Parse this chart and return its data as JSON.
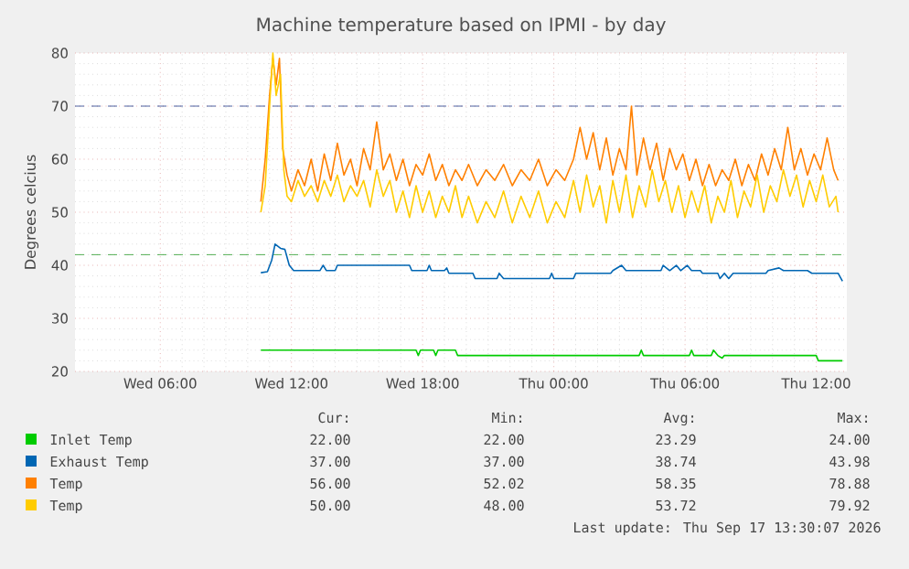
{
  "chart_data": {
    "type": "line",
    "title": "Machine temperature based on IPMI - by day",
    "ylabel": "Degrees celcius",
    "xlim": [
      "2026-09-16T02:06",
      "2026-09-17T13:24"
    ],
    "ylim": [
      20,
      80
    ],
    "xticks": [
      {
        "value": "2026-09-16T06:00",
        "label": "Wed 06:00"
      },
      {
        "value": "2026-09-16T12:00",
        "label": "Wed 12:00"
      },
      {
        "value": "2026-09-16T18:00",
        "label": "Wed 18:00"
      },
      {
        "value": "2026-09-17T00:00",
        "label": "Thu 00:00"
      },
      {
        "value": "2026-09-17T06:00",
        "label": "Thu 06:00"
      },
      {
        "value": "2026-09-17T12:00",
        "label": "Thu 12:00"
      }
    ],
    "yticks": [
      20,
      30,
      40,
      50,
      60,
      70,
      80
    ],
    "grid": true,
    "legend": "bottom",
    "marker": "none",
    "line_style": "solid",
    "ref_lines": [
      {
        "axis": "y",
        "value": 70,
        "color": "#1f3a8a",
        "line_style": "dashed"
      },
      {
        "axis": "y",
        "value": 42,
        "color": "#2a9a2a",
        "line_style": "dashed"
      }
    ],
    "series": [
      {
        "name": "Inlet Temp",
        "color": "#00cc00",
        "x": [
          "2026-09-16T10:36",
          "2026-09-16T17:42",
          "2026-09-16T17:48",
          "2026-09-16T17:54",
          "2026-09-16T18:30",
          "2026-09-16T18:36",
          "2026-09-16T18:42",
          "2026-09-16T19:30",
          "2026-09-16T19:36",
          "2026-09-17T03:54",
          "2026-09-17T04:00",
          "2026-09-17T04:06",
          "2026-09-17T06:12",
          "2026-09-17T06:18",
          "2026-09-17T06:24",
          "2026-09-17T07:12",
          "2026-09-17T07:18",
          "2026-09-17T07:30",
          "2026-09-17T07:42",
          "2026-09-17T07:48",
          "2026-09-17T12:00",
          "2026-09-17T12:06",
          "2026-09-17T13:12"
        ],
        "values": [
          24,
          24,
          23,
          24,
          24,
          23,
          24,
          24,
          23,
          23,
          24,
          23,
          23,
          24,
          23,
          23,
          24,
          23,
          22.5,
          23,
          23,
          22,
          22
        ]
      },
      {
        "name": "Exhaust Temp",
        "color": "#0066b3",
        "x": [
          "2026-09-16T10:36",
          "2026-09-16T10:54",
          "2026-09-16T11:06",
          "2026-09-16T11:15",
          "2026-09-16T11:30",
          "2026-09-16T11:42",
          "2026-09-16T11:54",
          "2026-09-16T12:06",
          "2026-09-16T13:18",
          "2026-09-16T13:27",
          "2026-09-16T13:36",
          "2026-09-16T14:00",
          "2026-09-16T14:06",
          "2026-09-16T17:24",
          "2026-09-16T17:30",
          "2026-09-16T18:12",
          "2026-09-16T18:18",
          "2026-09-16T18:24",
          "2026-09-16T19:00",
          "2026-09-16T19:06",
          "2026-09-16T19:12",
          "2026-09-16T20:18",
          "2026-09-16T20:24",
          "2026-09-16T21:24",
          "2026-09-16T21:30",
          "2026-09-16T21:42",
          "2026-09-16T23:48",
          "2026-09-16T23:54",
          "2026-09-17T00:00",
          "2026-09-17T00:54",
          "2026-09-17T01:00",
          "2026-09-17T02:36",
          "2026-09-17T02:42",
          "2026-09-17T03:06",
          "2026-09-17T03:18",
          "2026-09-17T04:54",
          "2026-09-17T05:00",
          "2026-09-17T05:18",
          "2026-09-17T05:36",
          "2026-09-17T05:48",
          "2026-09-17T06:06",
          "2026-09-17T06:18",
          "2026-09-17T06:42",
          "2026-09-17T06:48",
          "2026-09-17T07:30",
          "2026-09-17T07:36",
          "2026-09-17T07:48",
          "2026-09-17T08:00",
          "2026-09-17T08:12",
          "2026-09-17T09:42",
          "2026-09-17T09:48",
          "2026-09-17T10:18",
          "2026-09-17T10:30",
          "2026-09-17T11:36",
          "2026-09-17T11:48",
          "2026-09-17T13:00",
          "2026-09-17T13:12"
        ],
        "values": [
          38.6,
          38.8,
          41,
          44,
          43.2,
          43,
          40,
          39,
          39,
          40,
          39,
          39,
          40,
          40,
          39,
          39,
          40,
          39,
          39,
          39.5,
          38.5,
          38.5,
          37.5,
          37.5,
          38.5,
          37.5,
          37.5,
          38.5,
          37.5,
          37.5,
          38.5,
          38.5,
          39,
          40,
          39,
          39,
          40,
          39,
          40,
          39,
          40,
          39,
          39,
          38.5,
          38.5,
          37.5,
          38.5,
          37.5,
          38.5,
          38.5,
          39,
          39.5,
          39,
          39,
          38.5,
          38.5,
          37
        ]
      },
      {
        "name": "Temp",
        "color": "#ff8000",
        "x": [
          "2026-09-16T10:36",
          "2026-09-16T10:48",
          "2026-09-16T11:00",
          "2026-09-16T11:09",
          "2026-09-16T11:18",
          "2026-09-16T11:27",
          "2026-09-16T11:36",
          "2026-09-16T11:48",
          "2026-09-16T12:00",
          "2026-09-16T12:18",
          "2026-09-16T12:36",
          "2026-09-16T12:54",
          "2026-09-16T13:12",
          "2026-09-16T13:30",
          "2026-09-16T13:48",
          "2026-09-16T14:06",
          "2026-09-16T14:24",
          "2026-09-16T14:42",
          "2026-09-16T15:00",
          "2026-09-16T15:18",
          "2026-09-16T15:36",
          "2026-09-16T15:54",
          "2026-09-16T16:12",
          "2026-09-16T16:30",
          "2026-09-16T16:48",
          "2026-09-16T17:06",
          "2026-09-16T17:24",
          "2026-09-16T17:42",
          "2026-09-16T18:00",
          "2026-09-16T18:18",
          "2026-09-16T18:36",
          "2026-09-16T18:54",
          "2026-09-16T19:12",
          "2026-09-16T19:30",
          "2026-09-16T19:48",
          "2026-09-16T20:06",
          "2026-09-16T20:30",
          "2026-09-16T20:54",
          "2026-09-16T21:18",
          "2026-09-16T21:42",
          "2026-09-16T22:06",
          "2026-09-16T22:30",
          "2026-09-16T22:54",
          "2026-09-16T23:18",
          "2026-09-16T23:42",
          "2026-09-17T00:06",
          "2026-09-17T00:30",
          "2026-09-17T00:54",
          "2026-09-17T01:12",
          "2026-09-17T01:30",
          "2026-09-17T01:48",
          "2026-09-17T02:06",
          "2026-09-17T02:24",
          "2026-09-17T02:42",
          "2026-09-17T03:00",
          "2026-09-17T03:18",
          "2026-09-17T03:33",
          "2026-09-17T03:48",
          "2026-09-17T04:06",
          "2026-09-17T04:24",
          "2026-09-17T04:42",
          "2026-09-17T05:00",
          "2026-09-17T05:18",
          "2026-09-17T05:36",
          "2026-09-17T05:54",
          "2026-09-17T06:12",
          "2026-09-17T06:30",
          "2026-09-17T06:48",
          "2026-09-17T07:06",
          "2026-09-17T07:24",
          "2026-09-17T07:42",
          "2026-09-17T08:00",
          "2026-09-17T08:18",
          "2026-09-17T08:36",
          "2026-09-17T08:54",
          "2026-09-17T09:12",
          "2026-09-17T09:30",
          "2026-09-17T09:48",
          "2026-09-17T10:06",
          "2026-09-17T10:24",
          "2026-09-17T10:42",
          "2026-09-17T11:00",
          "2026-09-17T11:18",
          "2026-09-17T11:36",
          "2026-09-17T11:54",
          "2026-09-17T12:12",
          "2026-09-17T12:30",
          "2026-09-17T12:48",
          "2026-09-17T13:00"
        ],
        "values": [
          52,
          60,
          72,
          79,
          74,
          79,
          62,
          57,
          54,
          58,
          55,
          60,
          54,
          61,
          56,
          63,
          57,
          60,
          55,
          62,
          58,
          67,
          58,
          61,
          56,
          60,
          55,
          59,
          57,
          61,
          56,
          59,
          55,
          58,
          56,
          59,
          55,
          58,
          56,
          59,
          55,
          58,
          56,
          60,
          55,
          58,
          56,
          60,
          66,
          60,
          65,
          58,
          64,
          57,
          62,
          58,
          70,
          57,
          64,
          58,
          63,
          56,
          62,
          58,
          61,
          56,
          60,
          55,
          59,
          55,
          58,
          56,
          60,
          55,
          59,
          56,
          61,
          57,
          62,
          58,
          66,
          58,
          62,
          57,
          61,
          58,
          64,
          58,
          56
        ]
      },
      {
        "name": "Temp",
        "color": "#ffcc00",
        "x": [
          "2026-09-16T10:36",
          "2026-09-16T10:48",
          "2026-09-16T11:00",
          "2026-09-16T11:09",
          "2026-09-16T11:18",
          "2026-09-16T11:30",
          "2026-09-16T11:39",
          "2026-09-16T11:48",
          "2026-09-16T12:00",
          "2026-09-16T12:18",
          "2026-09-16T12:36",
          "2026-09-16T12:54",
          "2026-09-16T13:12",
          "2026-09-16T13:30",
          "2026-09-16T13:48",
          "2026-09-16T14:06",
          "2026-09-16T14:24",
          "2026-09-16T14:42",
          "2026-09-16T15:00",
          "2026-09-16T15:18",
          "2026-09-16T15:36",
          "2026-09-16T15:54",
          "2026-09-16T16:12",
          "2026-09-16T16:30",
          "2026-09-16T16:48",
          "2026-09-16T17:06",
          "2026-09-16T17:24",
          "2026-09-16T17:42",
          "2026-09-16T18:00",
          "2026-09-16T18:18",
          "2026-09-16T18:36",
          "2026-09-16T18:54",
          "2026-09-16T19:12",
          "2026-09-16T19:30",
          "2026-09-16T19:48",
          "2026-09-16T20:06",
          "2026-09-16T20:30",
          "2026-09-16T20:54",
          "2026-09-16T21:18",
          "2026-09-16T21:42",
          "2026-09-16T22:06",
          "2026-09-16T22:30",
          "2026-09-16T22:54",
          "2026-09-16T23:18",
          "2026-09-16T23:42",
          "2026-09-17T00:06",
          "2026-09-17T00:30",
          "2026-09-17T00:54",
          "2026-09-17T01:12",
          "2026-09-17T01:30",
          "2026-09-17T01:48",
          "2026-09-17T02:06",
          "2026-09-17T02:24",
          "2026-09-17T02:42",
          "2026-09-17T03:00",
          "2026-09-17T03:18",
          "2026-09-17T03:36",
          "2026-09-17T03:54",
          "2026-09-17T04:12",
          "2026-09-17T04:30",
          "2026-09-17T04:48",
          "2026-09-17T05:06",
          "2026-09-17T05:24",
          "2026-09-17T05:42",
          "2026-09-17T06:00",
          "2026-09-17T06:18",
          "2026-09-17T06:36",
          "2026-09-17T06:54",
          "2026-09-17T07:12",
          "2026-09-17T07:30",
          "2026-09-17T07:48",
          "2026-09-17T08:06",
          "2026-09-17T08:24",
          "2026-09-17T08:42",
          "2026-09-17T09:00",
          "2026-09-17T09:18",
          "2026-09-17T09:36",
          "2026-09-17T09:54",
          "2026-09-17T10:12",
          "2026-09-17T10:30",
          "2026-09-17T10:48",
          "2026-09-17T11:06",
          "2026-09-17T11:24",
          "2026-09-17T11:42",
          "2026-09-17T12:00",
          "2026-09-17T12:18",
          "2026-09-17T12:36",
          "2026-09-17T12:54",
          "2026-09-17T13:00"
        ],
        "values": [
          50,
          55,
          70,
          80,
          72,
          76,
          58,
          53,
          52,
          56,
          53,
          55,
          52,
          56,
          53,
          57,
          52,
          55,
          53,
          56,
          51,
          58,
          53,
          56,
          50,
          54,
          49,
          55,
          50,
          54,
          49,
          53,
          50,
          55,
          49,
          53,
          48,
          52,
          49,
          54,
          48,
          53,
          49,
          54,
          48,
          52,
          49,
          56,
          50,
          57,
          51,
          55,
          48,
          56,
          50,
          57,
          49,
          55,
          51,
          58,
          52,
          56,
          50,
          55,
          49,
          54,
          50,
          55,
          48,
          53,
          50,
          56,
          49,
          54,
          51,
          57,
          50,
          55,
          52,
          58,
          53,
          57,
          51,
          56,
          52,
          57,
          51,
          53,
          50
        ]
      }
    ],
    "annotations": [
      "Cur:",
      "Min:",
      "Avg:",
      "Max:",
      "22.00",
      "22.00",
      "23.29",
      "24.00",
      "37.00",
      "37.00",
      "38.74",
      "43.98",
      "56.00",
      "52.02",
      "58.35",
      "78.88",
      "50.00",
      "48.00",
      "53.72",
      "79.92",
      "Last update: Thu Sep 17 13:30:07 2026"
    ]
  }
}
